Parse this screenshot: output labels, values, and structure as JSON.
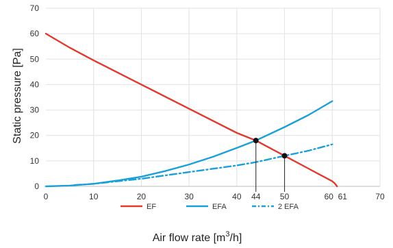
{
  "chart_data": {
    "type": "line",
    "xlabel_main": "Air flow rate [m",
    "xlabel_sup": "3",
    "xlabel_tail": "/h]",
    "ylabel": "Static pressure  [Pa]",
    "xlim": [
      0,
      70
    ],
    "ylim": [
      0,
      70
    ],
    "x_ticks": [
      0,
      10,
      20,
      30,
      40,
      44,
      50,
      60,
      61,
      70
    ],
    "y_ticks": [
      0,
      10,
      20,
      30,
      40,
      50,
      60,
      70
    ],
    "grid": true,
    "legend_position": "bottom",
    "series": [
      {
        "name": "EF",
        "color": "#e03a2f",
        "style": "solid",
        "x": [
          0,
          5,
          10,
          20,
          30,
          40,
          44,
          50,
          55,
          60,
          60.5,
          61
        ],
        "y": [
          60,
          54.5,
          49.5,
          40,
          30.5,
          21,
          18,
          12,
          7,
          2,
          1.2,
          0
        ]
      },
      {
        "name": "EFA",
        "color": "#1aa0d8",
        "style": "solid",
        "x": [
          0,
          5,
          10,
          15,
          20,
          25,
          30,
          35,
          40,
          44,
          50,
          55,
          60
        ],
        "y": [
          0,
          0.3,
          1,
          2.3,
          3.8,
          6,
          8.6,
          11.6,
          15.1,
          18,
          23.3,
          28,
          33.5
        ]
      },
      {
        "name": "2 EFA",
        "color": "#1aa0d8",
        "style": "dashdot",
        "x": [
          6,
          10,
          20,
          30,
          40,
          44,
          50,
          55,
          60
        ],
        "y": [
          0.5,
          1,
          3,
          5.6,
          8.2,
          9.5,
          12,
          14,
          16.5
        ]
      }
    ],
    "markers": [
      {
        "x": 44,
        "y": 18
      },
      {
        "x": 50,
        "y": 12
      }
    ]
  }
}
